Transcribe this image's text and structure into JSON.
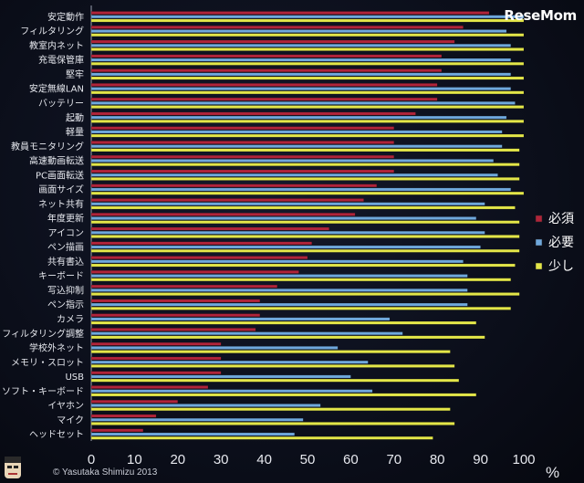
{
  "brand": {
    "logo_text": "ReseMom"
  },
  "copyright": "© Yasutaka Shimizu 2013",
  "unit_label": "%",
  "colors": {
    "required": "#b0243a",
    "needed": "#6fa8dc",
    "slight": "#e3e649"
  },
  "chart_data": {
    "type": "bar",
    "orientation": "horizontal",
    "categories": [
      "安定動作",
      "フィルタリング",
      "教室内ネット",
      "充電保管庫",
      "堅牢",
      "安定無線LAN",
      "バッテリー",
      "起動",
      "軽量",
      "教員モニタリング",
      "高速動画転送",
      "PC画面転送",
      "画面サイズ",
      "ネット共有",
      "年度更新",
      "アイコン",
      "ペン描画",
      "共有書込",
      "キーボード",
      "写込抑制",
      "ペン指示",
      "カメラ",
      "フィルタリング調整",
      "学校外ネット",
      "メモリ・スロット",
      "USB",
      "ソフト・キーボード",
      "イヤホン",
      "マイク",
      "ヘッドセット"
    ],
    "series": [
      {
        "name": "必須",
        "values": [
          92,
          86,
          84,
          81,
          81,
          80,
          80,
          75,
          70,
          70,
          70,
          70,
          66,
          63,
          61,
          55,
          51,
          50,
          48,
          43,
          39,
          39,
          38,
          30,
          30,
          30,
          27,
          20,
          15,
          12
        ]
      },
      {
        "name": "必要",
        "values": [
          100,
          96,
          97,
          97,
          97,
          97,
          98,
          96,
          95,
          95,
          93,
          94,
          97,
          91,
          89,
          91,
          90,
          86,
          87,
          87,
          87,
          69,
          72,
          57,
          64,
          60,
          65,
          53,
          49,
          47
        ]
      },
      {
        "name": "少し",
        "values": [
          100,
          100,
          100,
          100,
          100,
          100,
          100,
          100,
          100,
          99,
          99,
          99,
          100,
          98,
          99,
          99,
          99,
          98,
          97,
          99,
          97,
          89,
          91,
          83,
          84,
          85,
          89,
          83,
          84,
          79
        ]
      }
    ],
    "xlim": [
      0,
      100
    ],
    "xticks": [
      0,
      10,
      20,
      30,
      40,
      50,
      60,
      70,
      80,
      90,
      100
    ],
    "legend_placement": "right",
    "grid": false
  }
}
